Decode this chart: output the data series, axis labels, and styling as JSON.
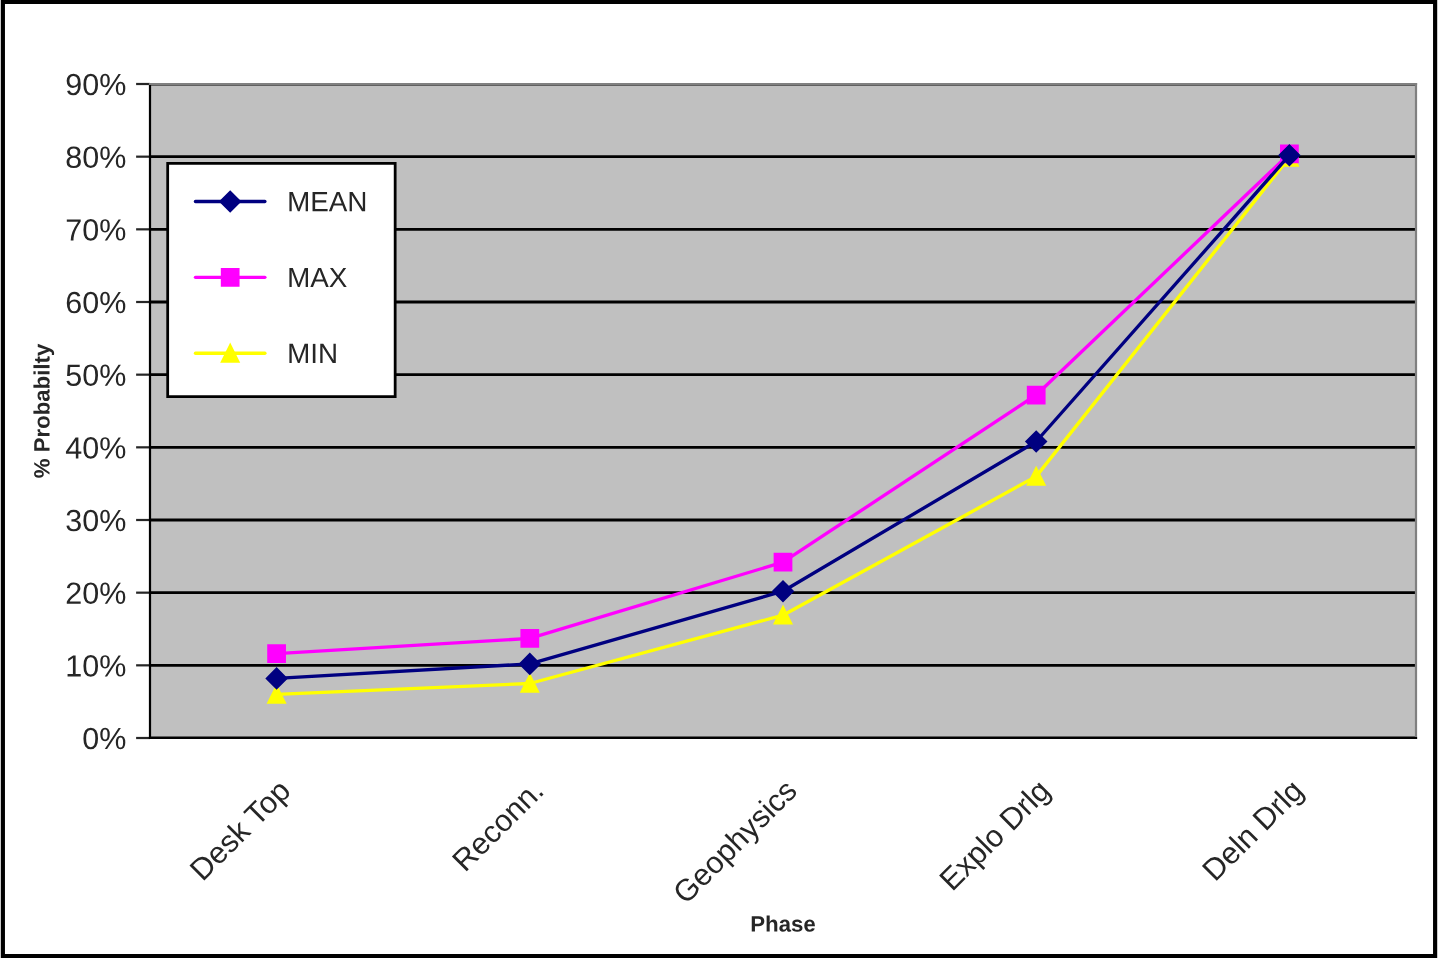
{
  "chart_data": {
    "type": "line",
    "xlabel": "Phase",
    "ylabel": "% Probabilty",
    "categories": [
      "Desk Top",
      "Reconn.",
      "Geophysics",
      "Explo Drlg",
      "Deln Drlg"
    ],
    "series": [
      {
        "name": "MEAN",
        "color": "#000080",
        "marker": "diamond",
        "values": [
          8.2,
          10.2,
          20.2,
          40.8,
          80.2
        ]
      },
      {
        "name": "MAX",
        "color": "#ff00ff",
        "marker": "square",
        "values": [
          11.6,
          13.7,
          24.2,
          47.2,
          80.4
        ]
      },
      {
        "name": "MIN",
        "color": "#ffff00",
        "marker": "triangle",
        "values": [
          6.0,
          7.5,
          16.9,
          36.0,
          79.9
        ]
      }
    ],
    "ylim": [
      0,
      90
    ],
    "yticks": [
      {
        "value": 0,
        "label": "0%"
      },
      {
        "value": 10,
        "label": "10%"
      },
      {
        "value": 20,
        "label": "20%"
      },
      {
        "value": 30,
        "label": "30%"
      },
      {
        "value": 40,
        "label": "40%"
      },
      {
        "value": 50,
        "label": "50%"
      },
      {
        "value": 60,
        "label": "60%"
      },
      {
        "value": 70,
        "label": "70%"
      },
      {
        "value": 80,
        "label": "80%"
      },
      {
        "value": 90,
        "label": "90%"
      }
    ],
    "grid": "y",
    "legend": "top left"
  }
}
